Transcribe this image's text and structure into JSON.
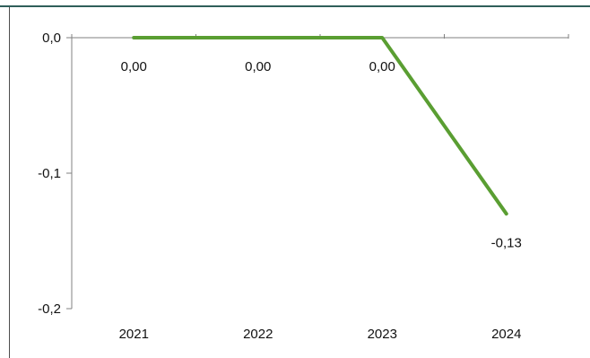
{
  "chart_data": {
    "type": "line",
    "categories": [
      "2021",
      "2022",
      "2023",
      "2024"
    ],
    "series": [
      {
        "values": [
          0.0,
          0.0,
          0.0,
          -0.13
        ],
        "labels": [
          "0,00",
          "0,00",
          "0,00",
          "-0,13"
        ]
      }
    ],
    "ylim": [
      -0.2,
      0.0
    ],
    "yticks": [
      0.0,
      -0.1,
      -0.2
    ],
    "ytick_labels": [
      "0,0",
      "-0,1",
      "-0,2"
    ],
    "title": "",
    "xlabel": "",
    "ylabel": "",
    "grid": false,
    "legend": "none",
    "colors": {
      "line": "#5a9e32",
      "axis": "#808080"
    }
  }
}
